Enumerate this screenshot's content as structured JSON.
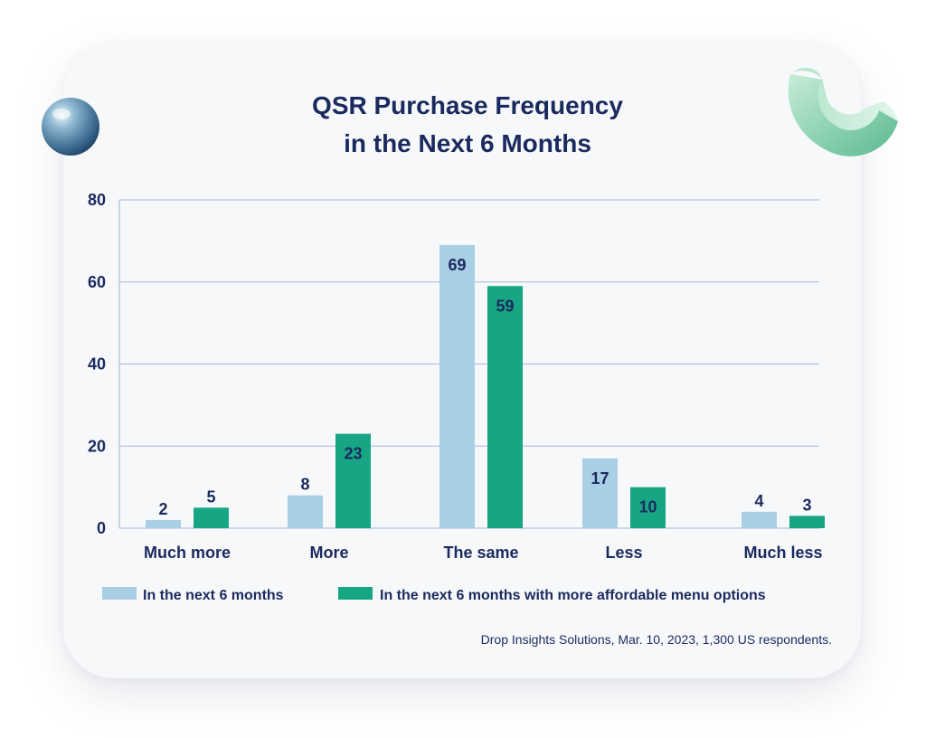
{
  "colors": {
    "series_1": "#a8cfe3",
    "series_2": "#17a683",
    "text": "#1b2a5e",
    "grid": "#b4c0dc"
  },
  "decorations": {
    "left": "sphere-decoration",
    "right": "green-ring-decoration"
  },
  "chart_data": {
    "type": "bar",
    "title": [
      "QSR Purchase Frequency",
      "in the Next 6 Months"
    ],
    "categories": [
      "Much more",
      "More",
      "The same",
      "Less",
      "Much less"
    ],
    "series": [
      {
        "name": "In the next 6 months",
        "values": [
          2,
          8,
          69,
          17,
          4
        ]
      },
      {
        "name": "In the next 6 months with more affordable menu options",
        "values": [
          5,
          23,
          59,
          10,
          3
        ]
      }
    ],
    "y_ticks": [
      "0",
      "20",
      "40",
      "60",
      "80"
    ],
    "ylim": [
      0,
      80
    ],
    "grid": true,
    "legend_position": "bottom",
    "source": "Drop Insights Solutions, Mar. 10, 2023, 1,300 US respondents."
  }
}
